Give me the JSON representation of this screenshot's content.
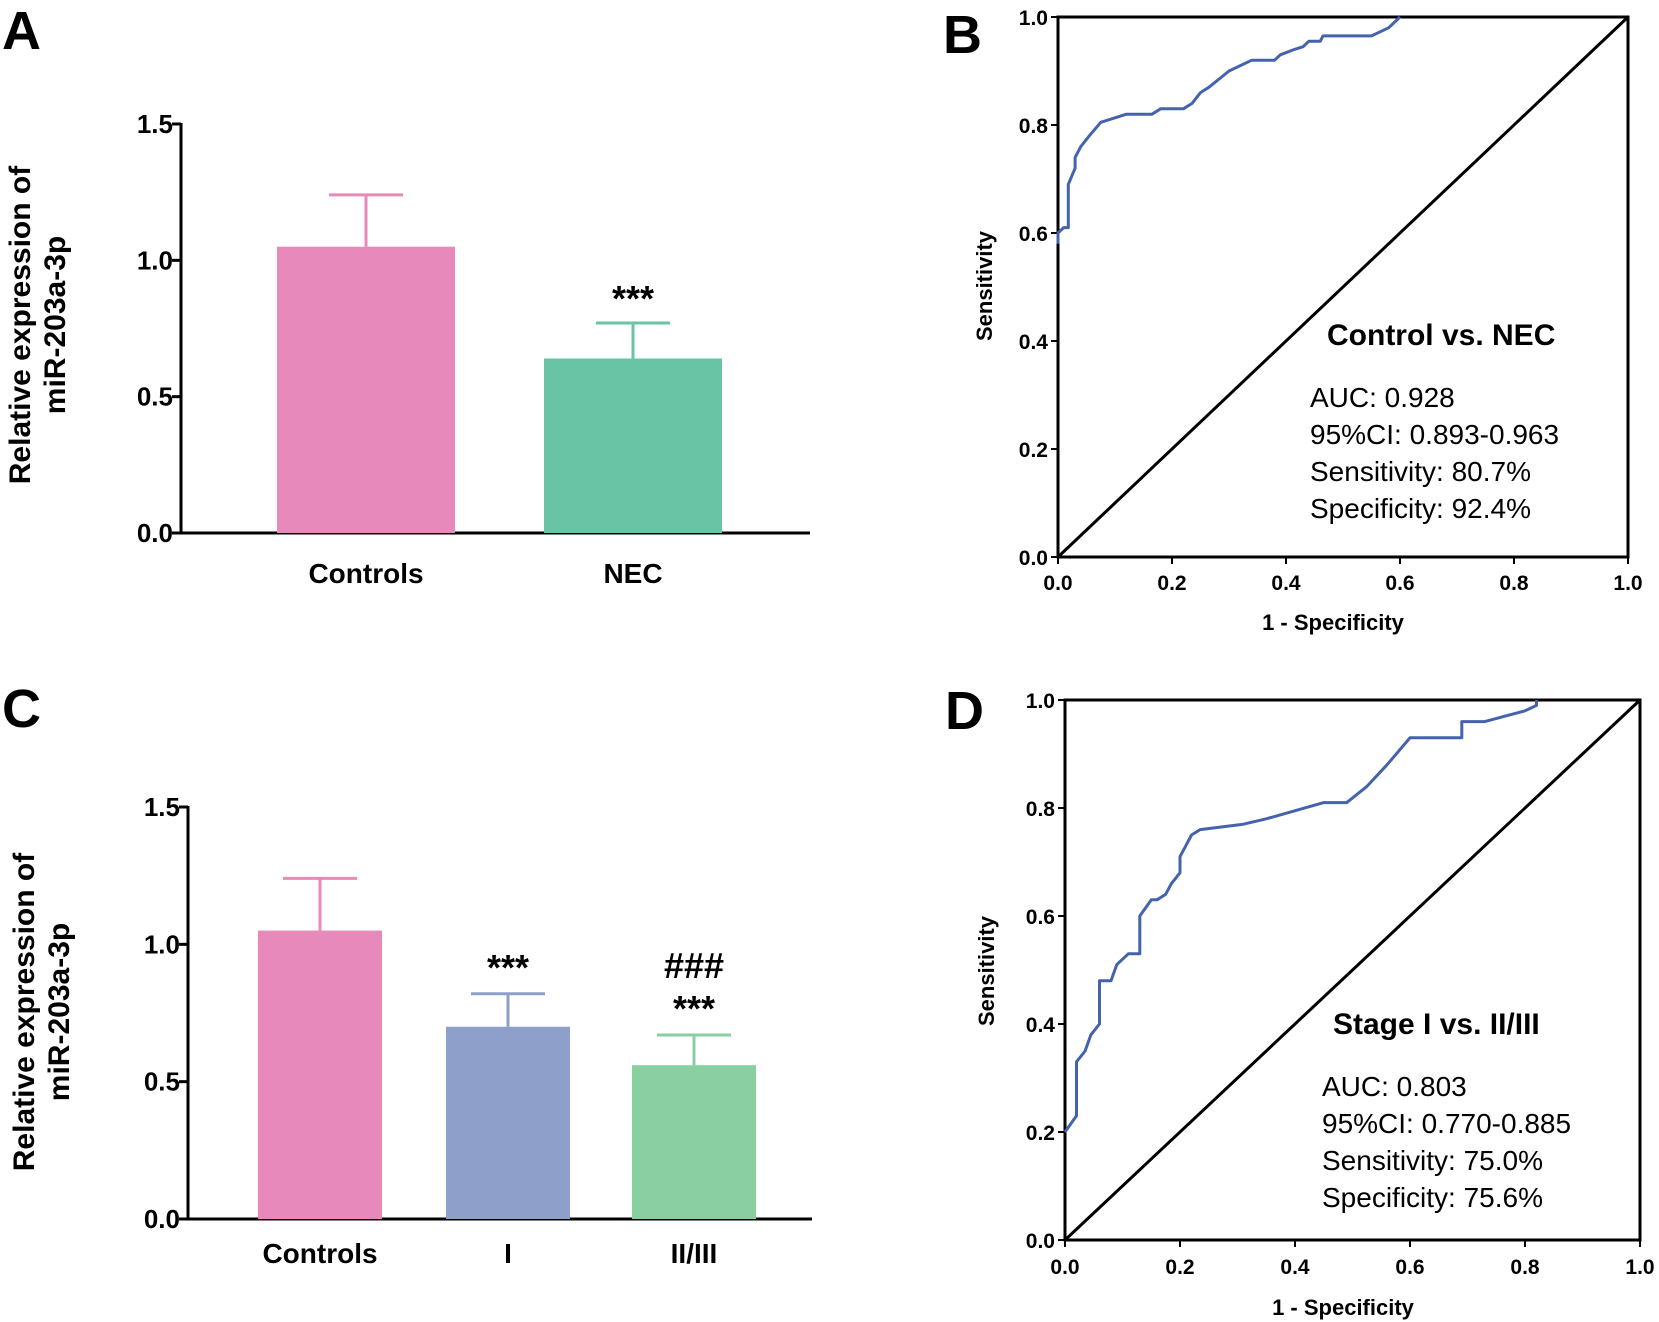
{
  "colors": {
    "controls": "#e789ba",
    "nec": "#68c4a5",
    "stage_i": "#8ea0c9",
    "stage_ii_iii": "#88cfa2",
    "roc_curve": "#4563ad"
  },
  "chart_data": [
    {
      "panel": "A",
      "type": "bar",
      "ylabel_lines": [
        "Relative expression of",
        "miR-203a-3p"
      ],
      "categories": [
        "Controls",
        "NEC"
      ],
      "values": [
        1.05,
        0.64
      ],
      "errors": [
        0.19,
        0.13
      ],
      "annotations": [
        [],
        [
          "***"
        ]
      ],
      "ylim": [
        0,
        1.5
      ],
      "yticks": [
        "0.0",
        "0.5",
        "1.0",
        "1.5"
      ],
      "ytick_values": [
        0,
        0.5,
        1.0,
        1.5
      ],
      "bar_colors": [
        "controls",
        "nec"
      ]
    },
    {
      "panel": "B",
      "type": "line",
      "subtype": "roc",
      "xlabel": "1 - Specificity",
      "ylabel": "Sensitivity",
      "xlim": [
        0,
        1
      ],
      "ylim": [
        0,
        1
      ],
      "xticks": [
        "0.0",
        "0.2",
        "0.4",
        "0.6",
        "0.8",
        "1.0"
      ],
      "yticks": [
        "0.0",
        "0.2",
        "0.4",
        "0.6",
        "0.8",
        "1.0"
      ],
      "tick_values": [
        0,
        0.2,
        0.4,
        0.6,
        0.8,
        1.0
      ],
      "heading": "Control vs. NEC",
      "stats": [
        "AUC: 0.928",
        "95%CI: 0.893-0.963",
        "Sensitivity: 80.7%",
        "Specificity: 92.4%"
      ],
      "x": [
        0,
        0,
        0.01,
        0.018,
        0.018,
        0.03,
        0.03,
        0.04,
        0.055,
        0.075,
        0.12,
        0.165,
        0.18,
        0.22,
        0.235,
        0.25,
        0.265,
        0.3,
        0.34,
        0.355,
        0.38,
        0.39,
        0.415,
        0.43,
        0.44,
        0.46,
        0.465,
        0.55,
        0.58,
        0.6
      ],
      "y": [
        0.58,
        0.6,
        0.61,
        0.61,
        0.69,
        0.72,
        0.74,
        0.76,
        0.78,
        0.805,
        0.82,
        0.82,
        0.83,
        0.83,
        0.84,
        0.86,
        0.87,
        0.9,
        0.92,
        0.92,
        0.92,
        0.93,
        0.94,
        0.945,
        0.955,
        0.955,
        0.965,
        0.965,
        0.98,
        1.0
      ],
      "diagonal": true
    },
    {
      "panel": "C",
      "type": "bar",
      "ylabel_lines": [
        "Relative expression of",
        "miR-203a-3p"
      ],
      "categories": [
        "Controls",
        "I",
        "II/III"
      ],
      "values": [
        1.05,
        0.7,
        0.56
      ],
      "errors": [
        0.19,
        0.12,
        0.11
      ],
      "annotations": [
        [],
        [
          "***"
        ],
        [
          "###",
          "***"
        ]
      ],
      "ylim": [
        0,
        1.5
      ],
      "yticks": [
        "0.0",
        "0.5",
        "1.0",
        "1.5"
      ],
      "ytick_values": [
        0,
        0.5,
        1.0,
        1.5
      ],
      "bar_colors": [
        "controls",
        "stage_i",
        "stage_ii_iii"
      ]
    },
    {
      "panel": "D",
      "type": "line",
      "subtype": "roc",
      "xlabel": "1 - Specificity",
      "ylabel": "Sensitivity",
      "xlim": [
        0,
        1
      ],
      "ylim": [
        0,
        1
      ],
      "xticks": [
        "0.0",
        "0.2",
        "0.4",
        "0.6",
        "0.8",
        "1.0"
      ],
      "yticks": [
        "0.0",
        "0.2",
        "0.4",
        "0.6",
        "0.8",
        "1.0"
      ],
      "tick_values": [
        0,
        0.2,
        0.4,
        0.6,
        0.8,
        1.0
      ],
      "heading": "Stage I vs. II/III",
      "stats": [
        "AUC: 0.803",
        "95%CI: 0.770-0.885",
        "Sensitivity: 75.0%",
        "Specificity: 75.6%"
      ],
      "x": [
        0,
        0.02,
        0.02,
        0.035,
        0.045,
        0.06,
        0.06,
        0.08,
        0.09,
        0.11,
        0.13,
        0.13,
        0.15,
        0.16,
        0.175,
        0.185,
        0.2,
        0.2,
        0.21,
        0.22,
        0.22,
        0.235,
        0.31,
        0.35,
        0.45,
        0.49,
        0.525,
        0.56,
        0.6,
        0.69,
        0.69,
        0.73,
        0.8,
        0.82,
        0.82
      ],
      "y": [
        0.2,
        0.23,
        0.33,
        0.35,
        0.38,
        0.4,
        0.48,
        0.48,
        0.51,
        0.53,
        0.53,
        0.6,
        0.63,
        0.63,
        0.64,
        0.66,
        0.68,
        0.71,
        0.73,
        0.75,
        0.75,
        0.76,
        0.77,
        0.78,
        0.81,
        0.81,
        0.84,
        0.88,
        0.93,
        0.93,
        0.96,
        0.96,
        0.98,
        0.99,
        1.0
      ],
      "diagonal": true
    }
  ]
}
